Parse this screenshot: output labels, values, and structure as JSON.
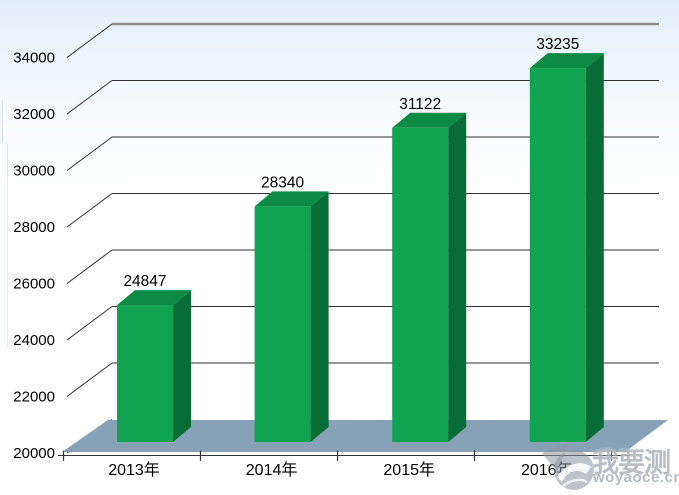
{
  "chart_data": {
    "type": "bar",
    "projection": "3d",
    "title": "",
    "xlabel": "",
    "ylabel": "",
    "categories": [
      "2013年",
      "2014年",
      "2015年",
      "2016年"
    ],
    "values": [
      24847,
      28340,
      31122,
      33235
    ],
    "value_labels": [
      "24847",
      "28340",
      "31122",
      "33235"
    ],
    "yticks": [
      20000,
      22000,
      24000,
      26000,
      28000,
      30000,
      32000,
      34000
    ],
    "ylim": [
      20000,
      34000
    ],
    "grid": true,
    "legend": false,
    "colors": {
      "bar_front": "#10A351",
      "bar_top": "#0D8B45",
      "bar_side": "#076C36",
      "floor": "#87A1B6",
      "grid_top_line": "#8B8B8B",
      "grid_line": "#2F2F2F",
      "axis_line": "#333333",
      "label_text": "#000000"
    }
  },
  "watermark": {
    "brand": "我要测",
    "domain": "woyaoce.cn",
    "logo": "swoosh-circle-icon",
    "color": "#8A939D"
  }
}
